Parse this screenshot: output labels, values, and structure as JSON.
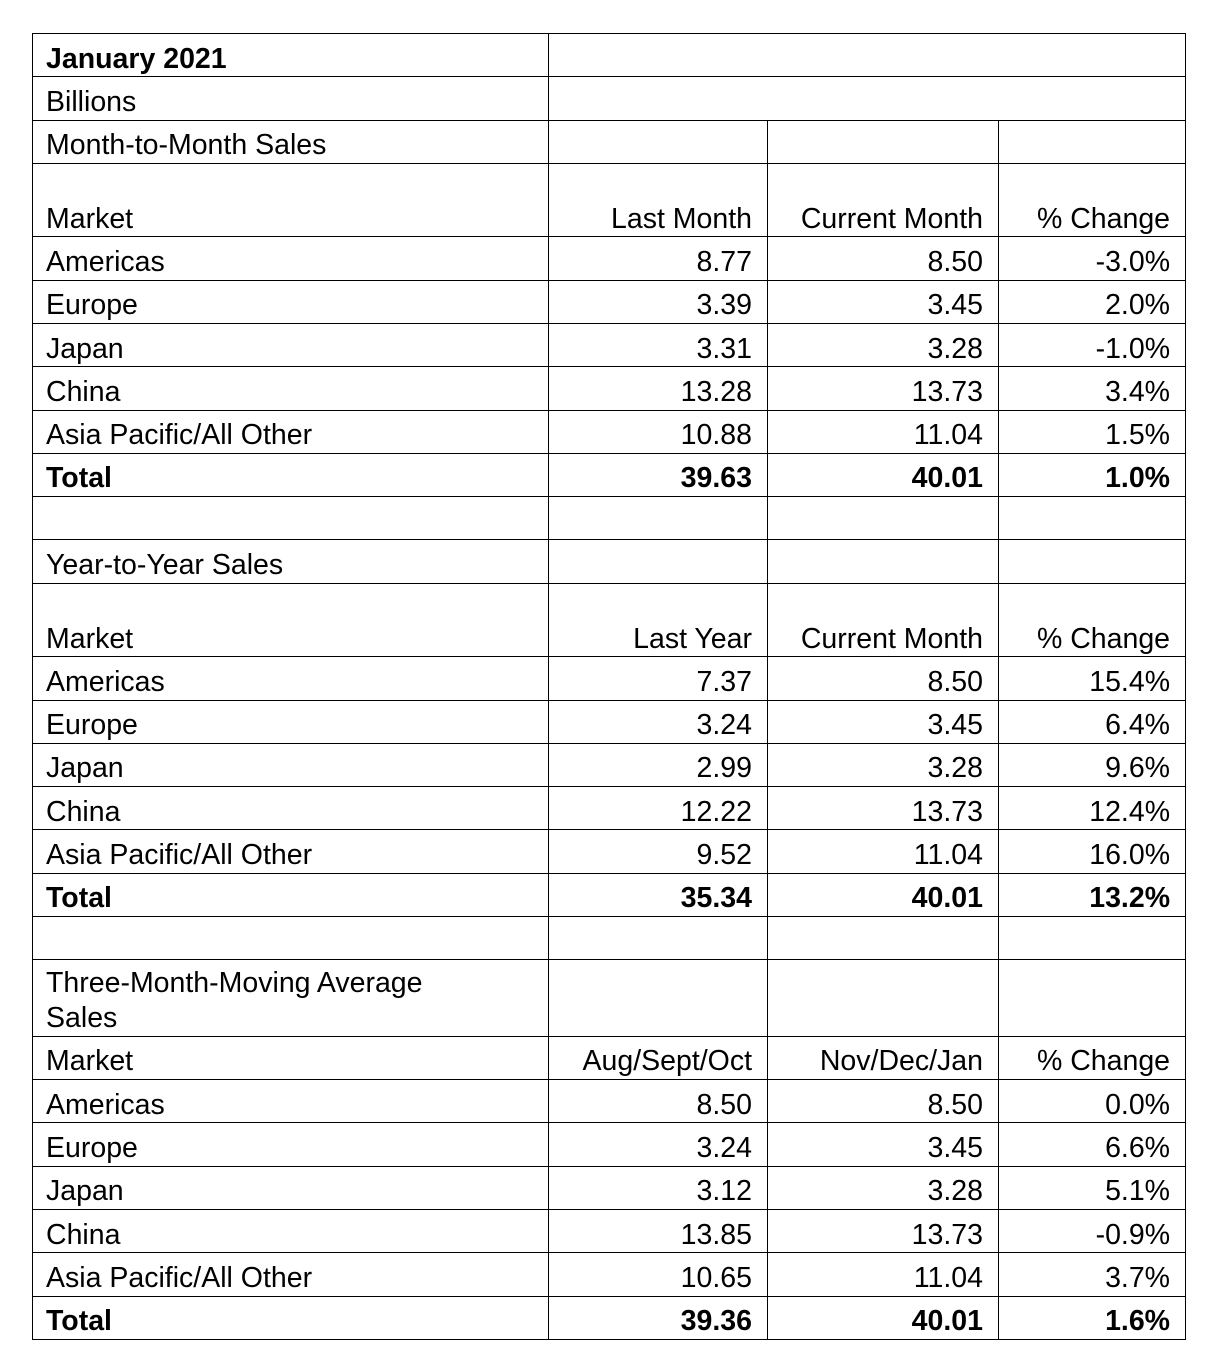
{
  "title": "January 2021",
  "unit": "Billions",
  "sections": [
    {
      "heading": "Month-to-Month Sales",
      "columns": [
        "Market",
        "Last Month",
        "Current Month",
        "% Change"
      ],
      "rows": [
        [
          "Americas",
          "8.77",
          "8.50",
          "-3.0%"
        ],
        [
          "Europe",
          "3.39",
          "3.45",
          "2.0%"
        ],
        [
          "Japan",
          "3.31",
          "3.28",
          "-1.0%"
        ],
        [
          "China",
          "13.28",
          "13.73",
          "3.4%"
        ],
        [
          "Asia Pacific/All Other",
          "10.88",
          "11.04",
          "1.5%"
        ]
      ],
      "total": [
        "Total",
        "39.63",
        "40.01",
        "1.0%"
      ]
    },
    {
      "heading": "Year-to-Year Sales",
      "columns": [
        "Market",
        "Last Year",
        "Current Month",
        "% Change"
      ],
      "rows": [
        [
          "Americas",
          "7.37",
          "8.50",
          "15.4%"
        ],
        [
          "Europe",
          "3.24",
          "3.45",
          "6.4%"
        ],
        [
          "Japan",
          "2.99",
          "3.28",
          "9.6%"
        ],
        [
          "China",
          "12.22",
          "13.73",
          "12.4%"
        ],
        [
          "Asia Pacific/All Other",
          "9.52",
          "11.04",
          "16.0%"
        ]
      ],
      "total": [
        "Total",
        "35.34",
        "40.01",
        "13.2%"
      ]
    },
    {
      "heading": "Three-Month-Moving Average Sales",
      "columns": [
        "Market",
        "Aug/Sept/Oct",
        "Nov/Dec/Jan",
        "% Change"
      ],
      "rows": [
        [
          "Americas",
          "8.50",
          "8.50",
          "0.0%"
        ],
        [
          "Europe",
          "3.24",
          "3.45",
          "6.6%"
        ],
        [
          "Japan",
          "3.12",
          "3.28",
          "5.1%"
        ],
        [
          "China",
          "13.85",
          "13.73",
          "-0.9%"
        ],
        [
          "Asia Pacific/All Other",
          "10.65",
          "11.04",
          "3.7%"
        ]
      ],
      "total": [
        "Total",
        "39.36",
        "40.01",
        "1.6%"
      ]
    }
  ]
}
